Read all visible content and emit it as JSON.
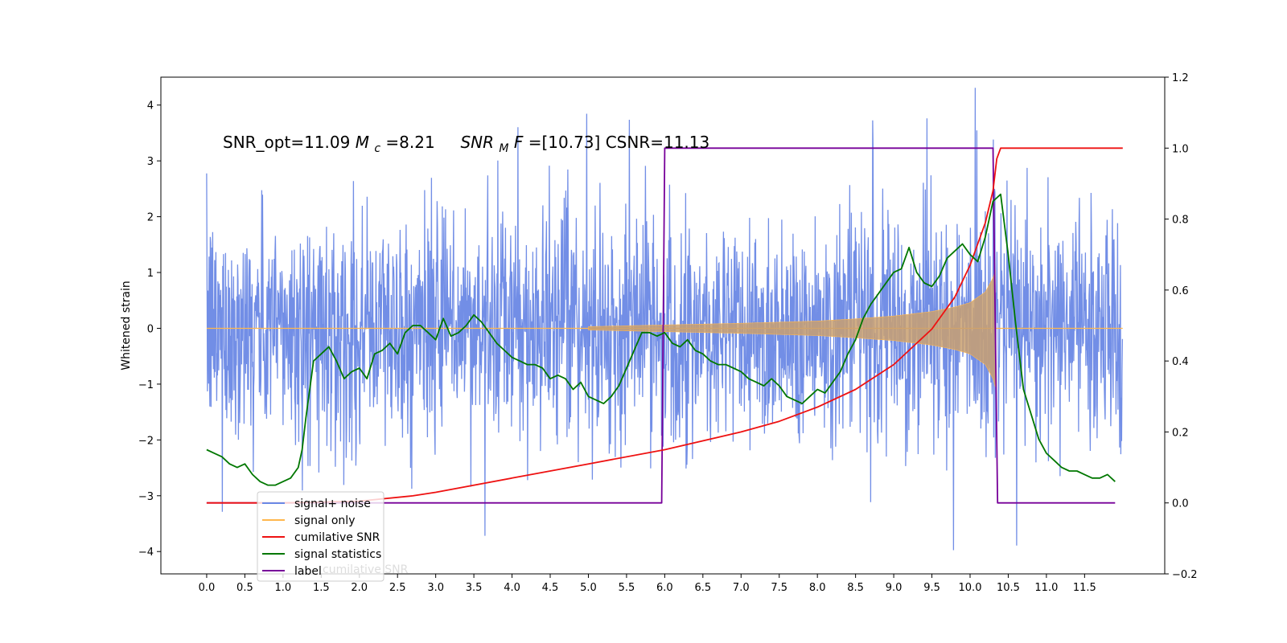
{
  "chart_data": {
    "type": "line",
    "title": "",
    "annotation": {
      "part1": "SNR_opt=11.09 ",
      "mc_symbol": "M",
      "mc_sub": "c",
      "part2": "=8.21    ",
      "snr_symbol": "SNR",
      "snr_sub": "M",
      "f_symbol": "F",
      "part3": "=[10.73] CSNR=11.13"
    },
    "xlabel": "",
    "ylabel": "Whitened strain",
    "y2label": "",
    "xlim": [
      -0.6,
      12.55
    ],
    "ylim": [
      -4.4,
      4.5
    ],
    "y2lim": [
      -0.2,
      1.2
    ],
    "x_ticks": [
      "0.0",
      "0.5",
      "1.0",
      "1.5",
      "2.0",
      "2.5",
      "3.0",
      "3.5",
      "4.0",
      "4.5",
      "5.0",
      "5.5",
      "6.0",
      "6.5",
      "7.0",
      "7.5",
      "8.0",
      "8.5",
      "9.0",
      "9.5",
      "10.0",
      "10.5",
      "11.0",
      "11.5"
    ],
    "y_ticks": [
      "4",
      "3",
      "2",
      "1",
      "0",
      "−1",
      "−2",
      "−3",
      "−4"
    ],
    "y2_ticks": [
      "1.2",
      "1.0",
      "0.8",
      "0.6",
      "0.4",
      "0.2",
      "0.0",
      "−0.2"
    ],
    "legend_position": "lower-left",
    "legend": [
      {
        "label": "signal+ noise",
        "color": "#6a88e5"
      },
      {
        "label": "signal only",
        "color": "#ffb74d"
      },
      {
        "label": "cumilative SNR",
        "color": "#ee1111"
      },
      {
        "label": "signal statistics",
        "color": "#007700"
      },
      {
        "label": "label",
        "color": "#770099"
      }
    ],
    "legend_hidden_text": "cumilative SNR",
    "series": [
      {
        "name": "signal+ noise",
        "axis": "left",
        "color": "#6a88e5",
        "x_range": [
          0.0,
          12.0
        ],
        "amplitude_band": [
          -2.4,
          2.6
        ],
        "peak_range": [
          -3.9,
          4.1
        ]
      },
      {
        "name": "signal only",
        "axis": "left",
        "color": "#ffb74d",
        "chirp_start": 5.0,
        "chirp_end": 10.33,
        "envelope": [
          [
            5.0,
            0.03
          ],
          [
            6.0,
            0.06
          ],
          [
            7.0,
            0.09
          ],
          [
            8.0,
            0.13
          ],
          [
            8.5,
            0.17
          ],
          [
            9.0,
            0.22
          ],
          [
            9.5,
            0.3
          ],
          [
            9.8,
            0.38
          ],
          [
            10.0,
            0.46
          ],
          [
            10.2,
            0.65
          ],
          [
            10.3,
            0.9
          ],
          [
            10.33,
            1.05
          ]
        ]
      },
      {
        "name": "cumilative SNR",
        "axis": "right",
        "color": "#ee1111",
        "x": [
          0.0,
          1.0,
          2.0,
          2.7,
          3.0,
          4.0,
          5.0,
          6.0,
          7.0,
          7.5,
          8.0,
          8.5,
          9.0,
          9.5,
          9.8,
          10.0,
          10.2,
          10.3,
          10.35,
          10.4,
          11.5,
          12.0
        ],
        "y": [
          0.0,
          0.0,
          0.005,
          0.02,
          0.03,
          0.07,
          0.11,
          0.15,
          0.2,
          0.23,
          0.27,
          0.32,
          0.39,
          0.49,
          0.58,
          0.67,
          0.79,
          0.88,
          0.97,
          1.0,
          1.0,
          1.0
        ]
      },
      {
        "name": "signal statistics",
        "axis": "right",
        "color": "#007700",
        "x": [
          0.0,
          0.1,
          0.2,
          0.3,
          0.4,
          0.5,
          0.6,
          0.7,
          0.8,
          0.9,
          1.0,
          1.1,
          1.2,
          1.25,
          1.3,
          1.4,
          1.5,
          1.6,
          1.7,
          1.8,
          1.9,
          2.0,
          2.1,
          2.2,
          2.3,
          2.4,
          2.5,
          2.6,
          2.7,
          2.8,
          2.9,
          3.0,
          3.1,
          3.2,
          3.3,
          3.4,
          3.5,
          3.6,
          3.7,
          3.8,
          3.9,
          4.0,
          4.1,
          4.2,
          4.3,
          4.4,
          4.5,
          4.6,
          4.7,
          4.8,
          4.9,
          5.0,
          5.1,
          5.2,
          5.3,
          5.4,
          5.5,
          5.6,
          5.7,
          5.8,
          5.9,
          6.0,
          6.1,
          6.2,
          6.3,
          6.4,
          6.5,
          6.6,
          6.7,
          6.8,
          6.9,
          7.0,
          7.1,
          7.2,
          7.3,
          7.4,
          7.5,
          7.6,
          7.7,
          7.8,
          7.9,
          8.0,
          8.1,
          8.2,
          8.3,
          8.4,
          8.5,
          8.6,
          8.7,
          8.8,
          8.9,
          9.0,
          9.1,
          9.2,
          9.3,
          9.4,
          9.5,
          9.6,
          9.7,
          9.8,
          9.9,
          10.0,
          10.1,
          10.2,
          10.3,
          10.4,
          10.5,
          10.6,
          10.7,
          10.8,
          10.9,
          11.0,
          11.1,
          11.2,
          11.3,
          11.4,
          11.5,
          11.6,
          11.7,
          11.8,
          11.9
        ],
        "y": [
          0.15,
          0.14,
          0.13,
          0.11,
          0.1,
          0.11,
          0.08,
          0.06,
          0.05,
          0.05,
          0.06,
          0.07,
          0.1,
          0.15,
          0.24,
          0.4,
          0.42,
          0.44,
          0.4,
          0.35,
          0.37,
          0.38,
          0.35,
          0.42,
          0.43,
          0.45,
          0.42,
          0.48,
          0.5,
          0.5,
          0.48,
          0.46,
          0.52,
          0.47,
          0.48,
          0.5,
          0.53,
          0.51,
          0.48,
          0.45,
          0.43,
          0.41,
          0.4,
          0.39,
          0.39,
          0.38,
          0.35,
          0.36,
          0.35,
          0.32,
          0.34,
          0.3,
          0.29,
          0.28,
          0.3,
          0.33,
          0.38,
          0.43,
          0.48,
          0.48,
          0.47,
          0.48,
          0.45,
          0.44,
          0.46,
          0.43,
          0.42,
          0.4,
          0.39,
          0.39,
          0.38,
          0.37,
          0.35,
          0.34,
          0.33,
          0.35,
          0.33,
          0.3,
          0.29,
          0.28,
          0.3,
          0.32,
          0.31,
          0.34,
          0.37,
          0.42,
          0.46,
          0.52,
          0.56,
          0.59,
          0.62,
          0.65,
          0.66,
          0.72,
          0.65,
          0.62,
          0.61,
          0.64,
          0.69,
          0.71,
          0.73,
          0.7,
          0.68,
          0.75,
          0.85,
          0.87,
          0.7,
          0.5,
          0.32,
          0.25,
          0.18,
          0.14,
          0.12,
          0.1,
          0.09,
          0.09,
          0.08,
          0.07,
          0.07,
          0.08,
          0.06
        ]
      },
      {
        "name": "label",
        "axis": "right",
        "color": "#770099",
        "x": [
          0.0,
          5.96,
          6.0,
          10.3,
          10.36,
          11.9
        ],
        "y": [
          0.0,
          0.0,
          1.0,
          1.0,
          0.0,
          0.0
        ]
      }
    ]
  }
}
